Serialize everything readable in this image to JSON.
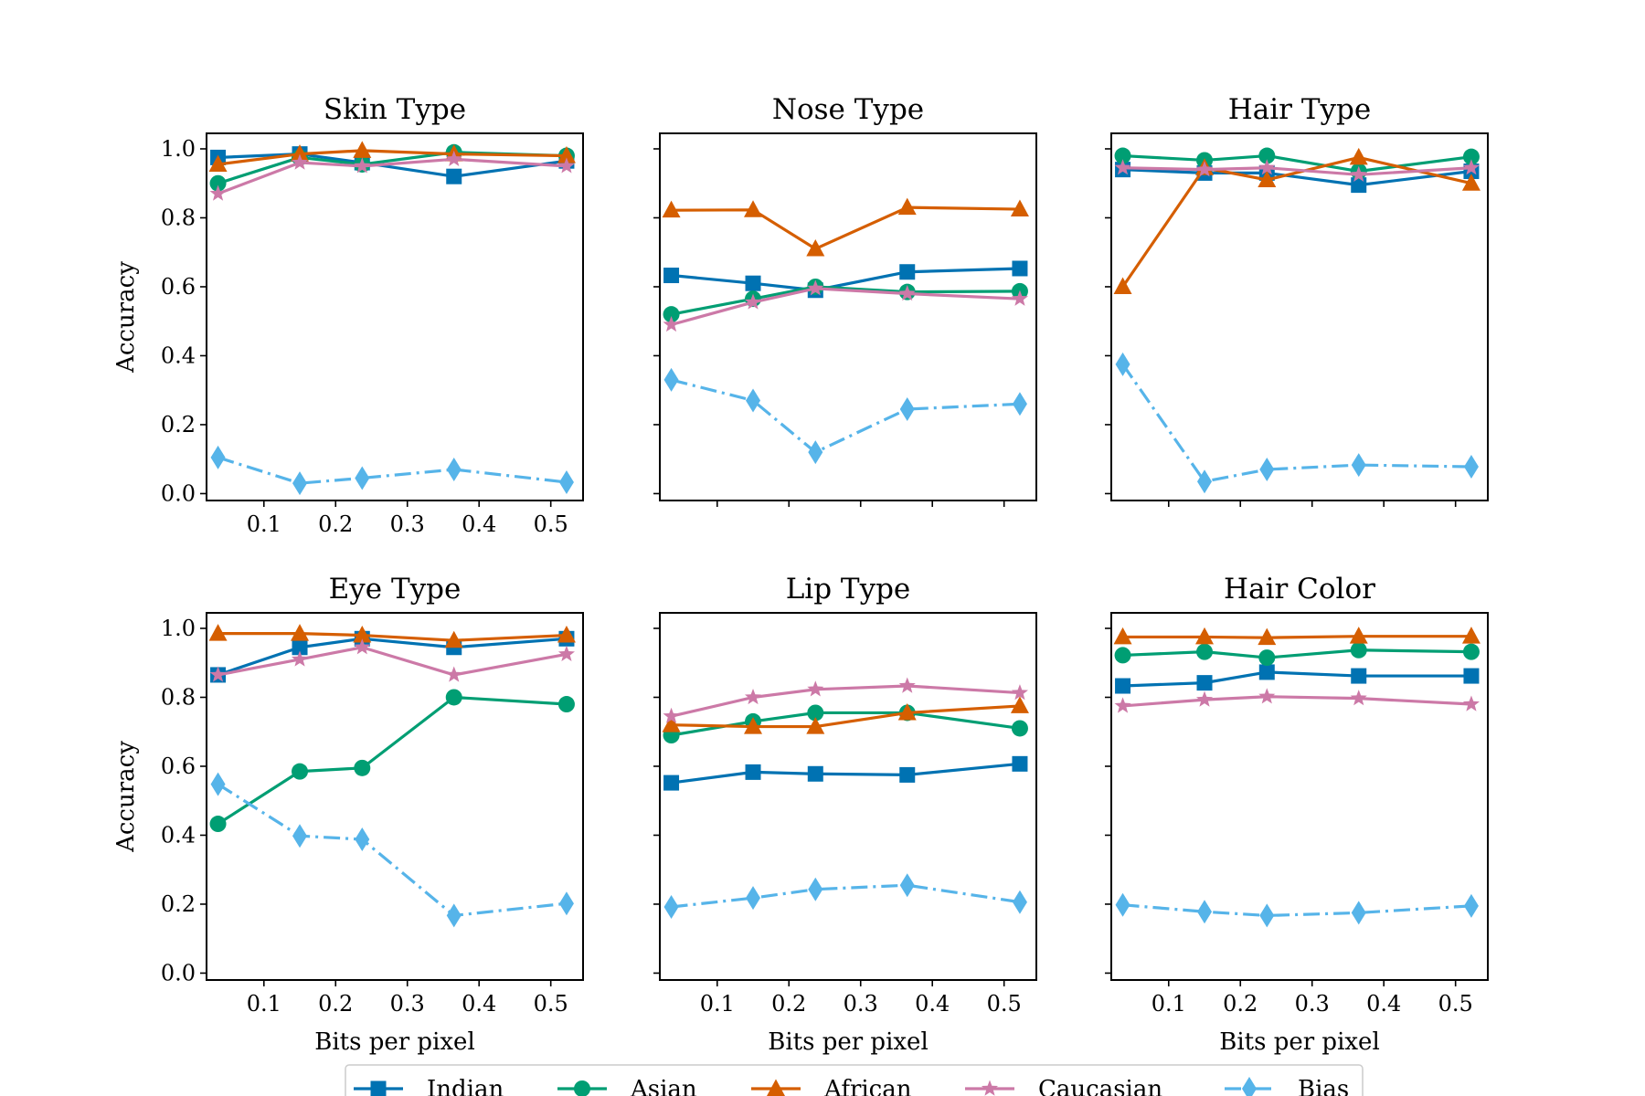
{
  "colors": {
    "Indian": "#0072b2",
    "Asian": "#009e73",
    "African": "#d55e00",
    "Caucasian": "#cc79a7",
    "Bias": "#56b4e9"
  },
  "markers": {
    "Indian": "square",
    "Asian": "circle",
    "African": "triangle",
    "Caucasian": "star",
    "Bias": "diamond"
  },
  "legend": {
    "placement": "bottom-center",
    "entries": [
      "Indian",
      "Asian",
      "African",
      "Caucasian",
      "Bias"
    ]
  },
  "chart_data": [
    {
      "type": "line",
      "title": "Skin Type",
      "xlabel": "",
      "ylabel": "Accuracy",
      "xlim": [
        0.02,
        0.545
      ],
      "ylim": [
        -0.02,
        1.045
      ],
      "xticks": [
        "0.1",
        "0.2",
        "0.3",
        "0.4",
        "0.5"
      ],
      "yticks": [
        "0.0",
        "0.2",
        "0.4",
        "0.6",
        "0.8",
        "1.0"
      ],
      "x": [
        0.036,
        0.15,
        0.237,
        0.365,
        0.522
      ],
      "series": [
        {
          "name": "Indian",
          "values": [
            0.975,
            0.985,
            0.96,
            0.92,
            0.965
          ]
        },
        {
          "name": "Asian",
          "values": [
            0.9,
            0.975,
            0.955,
            0.99,
            0.98
          ]
        },
        {
          "name": "African",
          "values": [
            0.955,
            0.985,
            0.995,
            0.985,
            0.98
          ]
        },
        {
          "name": "Caucasian",
          "values": [
            0.87,
            0.96,
            0.95,
            0.97,
            0.95
          ]
        },
        {
          "name": "Bias",
          "values": [
            0.105,
            0.03,
            0.045,
            0.07,
            0.033
          ]
        }
      ]
    },
    {
      "type": "line",
      "title": "Nose Type",
      "xlabel": "",
      "ylabel": "",
      "xlim": [
        0.02,
        0.545
      ],
      "ylim": [
        -0.02,
        1.045
      ],
      "xticks": [
        "",
        "",
        "",
        "",
        ""
      ],
      "yticks": [
        "",
        "",
        "",
        "",
        "",
        ""
      ],
      "x": [
        0.036,
        0.15,
        0.237,
        0.365,
        0.522
      ],
      "series": [
        {
          "name": "Indian",
          "values": [
            0.633,
            0.61,
            0.59,
            0.643,
            0.653
          ]
        },
        {
          "name": "Asian",
          "values": [
            0.52,
            0.565,
            0.6,
            0.585,
            0.587
          ]
        },
        {
          "name": "African",
          "values": [
            0.822,
            0.823,
            0.71,
            0.83,
            0.825
          ]
        },
        {
          "name": "Caucasian",
          "values": [
            0.49,
            0.555,
            0.595,
            0.58,
            0.565
          ]
        },
        {
          "name": "Bias",
          "values": [
            0.33,
            0.27,
            0.12,
            0.245,
            0.26
          ]
        }
      ]
    },
    {
      "type": "line",
      "title": "Hair Type",
      "xlabel": "",
      "ylabel": "",
      "xlim": [
        0.02,
        0.545
      ],
      "ylim": [
        -0.02,
        1.045
      ],
      "xticks": [
        "",
        "",
        "",
        "",
        ""
      ],
      "yticks": [
        "",
        "",
        "",
        "",
        "",
        ""
      ],
      "x": [
        0.036,
        0.15,
        0.237,
        0.365,
        0.522
      ],
      "series": [
        {
          "name": "Indian",
          "values": [
            0.94,
            0.93,
            0.93,
            0.895,
            0.935
          ]
        },
        {
          "name": "Asian",
          "values": [
            0.98,
            0.967,
            0.98,
            0.935,
            0.977
          ]
        },
        {
          "name": "African",
          "values": [
            0.6,
            0.945,
            0.91,
            0.975,
            0.9
          ]
        },
        {
          "name": "Caucasian",
          "values": [
            0.945,
            0.94,
            0.945,
            0.925,
            0.945
          ]
        },
        {
          "name": "Bias",
          "values": [
            0.375,
            0.035,
            0.07,
            0.083,
            0.078
          ]
        }
      ]
    },
    {
      "type": "line",
      "title": "Eye Type",
      "xlabel": "Bits per pixel",
      "ylabel": "Accuracy",
      "xlim": [
        0.02,
        0.545
      ],
      "ylim": [
        -0.02,
        1.045
      ],
      "xticks": [
        "0.1",
        "0.2",
        "0.3",
        "0.4",
        "0.5"
      ],
      "yticks": [
        "0.0",
        "0.2",
        "0.4",
        "0.6",
        "0.8",
        "1.0"
      ],
      "x": [
        0.036,
        0.15,
        0.237,
        0.365,
        0.522
      ],
      "series": [
        {
          "name": "Indian",
          "values": [
            0.865,
            0.945,
            0.97,
            0.945,
            0.97
          ]
        },
        {
          "name": "Asian",
          "values": [
            0.433,
            0.585,
            0.595,
            0.8,
            0.78
          ]
        },
        {
          "name": "African",
          "values": [
            0.985,
            0.985,
            0.98,
            0.965,
            0.98
          ]
        },
        {
          "name": "Caucasian",
          "values": [
            0.865,
            0.91,
            0.945,
            0.865,
            0.925
          ]
        },
        {
          "name": "Bias",
          "values": [
            0.548,
            0.398,
            0.388,
            0.167,
            0.202
          ]
        }
      ]
    },
    {
      "type": "line",
      "title": "Lip Type",
      "xlabel": "Bits per pixel",
      "ylabel": "",
      "xlim": [
        0.02,
        0.545
      ],
      "ylim": [
        -0.02,
        1.045
      ],
      "xticks": [
        "0.1",
        "0.2",
        "0.3",
        "0.4",
        "0.5"
      ],
      "yticks": [
        "",
        "",
        "",
        "",
        "",
        ""
      ],
      "x": [
        0.036,
        0.15,
        0.237,
        0.365,
        0.522
      ],
      "series": [
        {
          "name": "Indian",
          "values": [
            0.552,
            0.583,
            0.578,
            0.575,
            0.607
          ]
        },
        {
          "name": "Asian",
          "values": [
            0.69,
            0.73,
            0.755,
            0.755,
            0.71
          ]
        },
        {
          "name": "African",
          "values": [
            0.72,
            0.715,
            0.715,
            0.755,
            0.775
          ]
        },
        {
          "name": "Caucasian",
          "values": [
            0.745,
            0.8,
            0.823,
            0.833,
            0.813
          ]
        },
        {
          "name": "Bias",
          "values": [
            0.192,
            0.218,
            0.243,
            0.255,
            0.206
          ]
        }
      ]
    },
    {
      "type": "line",
      "title": "Hair Color",
      "xlabel": "Bits per pixel",
      "ylabel": "",
      "xlim": [
        0.02,
        0.545
      ],
      "ylim": [
        -0.02,
        1.045
      ],
      "xticks": [
        "0.1",
        "0.2",
        "0.3",
        "0.4",
        "0.5"
      ],
      "yticks": [
        "",
        "",
        "",
        "",
        "",
        ""
      ],
      "x": [
        0.036,
        0.15,
        0.237,
        0.365,
        0.522
      ],
      "series": [
        {
          "name": "Indian",
          "values": [
            0.833,
            0.842,
            0.873,
            0.862,
            0.862
          ]
        },
        {
          "name": "Asian",
          "values": [
            0.922,
            0.932,
            0.915,
            0.937,
            0.932
          ]
        },
        {
          "name": "African",
          "values": [
            0.975,
            0.975,
            0.973,
            0.977,
            0.977
          ]
        },
        {
          "name": "Caucasian",
          "values": [
            0.775,
            0.793,
            0.802,
            0.797,
            0.78
          ]
        },
        {
          "name": "Bias",
          "values": [
            0.198,
            0.178,
            0.167,
            0.175,
            0.195
          ]
        }
      ]
    }
  ]
}
